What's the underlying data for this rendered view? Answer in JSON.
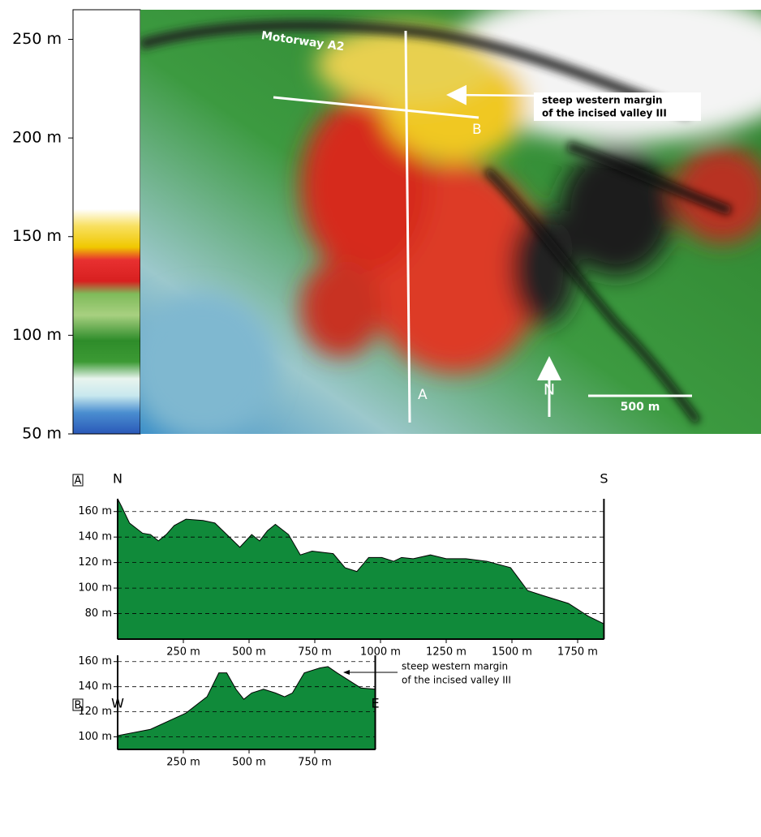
{
  "map": {
    "colorbar": {
      "ylim": [
        50,
        265
      ],
      "ticks": [
        {
          "value": 50,
          "label": "50 m"
        },
        {
          "value": 100,
          "label": "100 m"
        },
        {
          "value": 150,
          "label": "150 m"
        },
        {
          "value": 200,
          "label": "200 m"
        },
        {
          "value": 250,
          "label": "250 m"
        }
      ]
    },
    "labels": {
      "motorway": "Motorway A2",
      "annotation": [
        "steep western margin",
        "of the incised valley III"
      ],
      "point_a": "A",
      "point_b": "B",
      "north": "N",
      "scale_bar": "500 m"
    }
  },
  "chart_data": [
    {
      "type": "area",
      "title": "A",
      "left_label": "N",
      "right_label": "S",
      "color": "#108a3a",
      "x": [
        0,
        15,
        45,
        95,
        125,
        155,
        185,
        215,
        260,
        325,
        370,
        415,
        465,
        510,
        540,
        570,
        600,
        650,
        695,
        740,
        820,
        865,
        910,
        955,
        1005,
        1050,
        1080,
        1125,
        1190,
        1250,
        1325,
        1405,
        1495,
        1560,
        1620,
        1715,
        1790,
        1850
      ],
      "values": [
        170,
        164,
        151,
        143,
        142,
        137,
        142,
        149,
        154,
        153,
        151,
        142,
        132,
        142,
        137,
        145,
        150,
        142,
        126,
        129,
        127,
        116,
        113,
        124,
        124,
        121,
        124,
        123,
        126,
        123,
        123,
        121,
        116,
        98,
        94,
        88,
        78,
        72
      ],
      "xlim": [
        0,
        1850
      ],
      "ylim": [
        60,
        170
      ],
      "xticks": [
        {
          "value": 250,
          "label": "250 m"
        },
        {
          "value": 500,
          "label": "500 m"
        },
        {
          "value": 750,
          "label": "750 m"
        },
        {
          "value": 1000,
          "label": "1000 m"
        },
        {
          "value": 1250,
          "label": "1250 m"
        },
        {
          "value": 1500,
          "label": "1500 m"
        },
        {
          "value": 1750,
          "label": "1750 m"
        }
      ],
      "yticks": [
        {
          "value": 80,
          "label": "80 m"
        },
        {
          "value": 100,
          "label": "100 m"
        },
        {
          "value": 120,
          "label": "120 m"
        },
        {
          "value": 140,
          "label": "140 m"
        },
        {
          "value": 160,
          "label": "160 m"
        }
      ],
      "grid": true
    },
    {
      "type": "area",
      "title": "B",
      "left_label": "W",
      "right_label": "E",
      "color": "#108a3a",
      "x": [
        0,
        125,
        260,
        340,
        385,
        415,
        450,
        480,
        510,
        555,
        600,
        635,
        665,
        710,
        770,
        800,
        835,
        880,
        925,
        980
      ],
      "values": [
        101,
        106,
        119,
        132,
        151,
        151,
        138,
        130,
        135,
        138,
        135,
        132,
        135,
        151,
        155,
        156,
        151,
        145,
        139,
        138
      ],
      "xlim": [
        0,
        980
      ],
      "ylim": [
        90,
        165
      ],
      "xticks": [
        {
          "value": 250,
          "label": "250 m"
        },
        {
          "value": 500,
          "label": "500 m"
        },
        {
          "value": 750,
          "label": "750 m"
        }
      ],
      "yticks": [
        {
          "value": 100,
          "label": "100 m"
        },
        {
          "value": 120,
          "label": "120 m"
        },
        {
          "value": 140,
          "label": "140 m"
        },
        {
          "value": 160,
          "label": "160 m"
        }
      ],
      "grid": true,
      "annotation": [
        "steep western margin",
        "of the incised valley III"
      ]
    }
  ]
}
